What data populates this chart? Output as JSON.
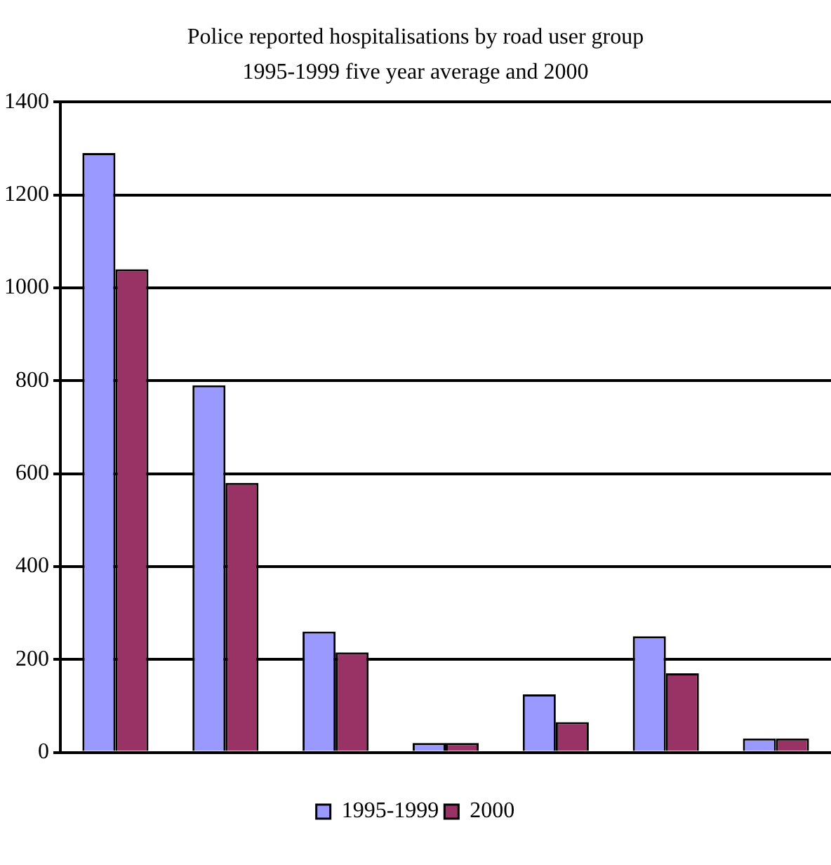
{
  "chart_data": {
    "type": "bar",
    "title": "Police reported hospitalisations by road user group",
    "subtitle": "1995-1999 five year average and 2000",
    "categories": [
      null,
      null,
      null,
      null,
      null,
      null,
      null
    ],
    "series": [
      {
        "name": "1995-1999",
        "color": "#9999ff",
        "values": [
          1290,
          790,
          260,
          20,
          125,
          250,
          30
        ]
      },
      {
        "name": "2000",
        "color": "#993366",
        "values": [
          1040,
          580,
          215,
          20,
          65,
          170,
          30
        ]
      }
    ],
    "ylim": [
      0,
      1400
    ],
    "yticks": [
      0,
      200,
      400,
      600,
      800,
      1000,
      1200,
      1400
    ],
    "grid": "y",
    "legend": "bottom"
  }
}
